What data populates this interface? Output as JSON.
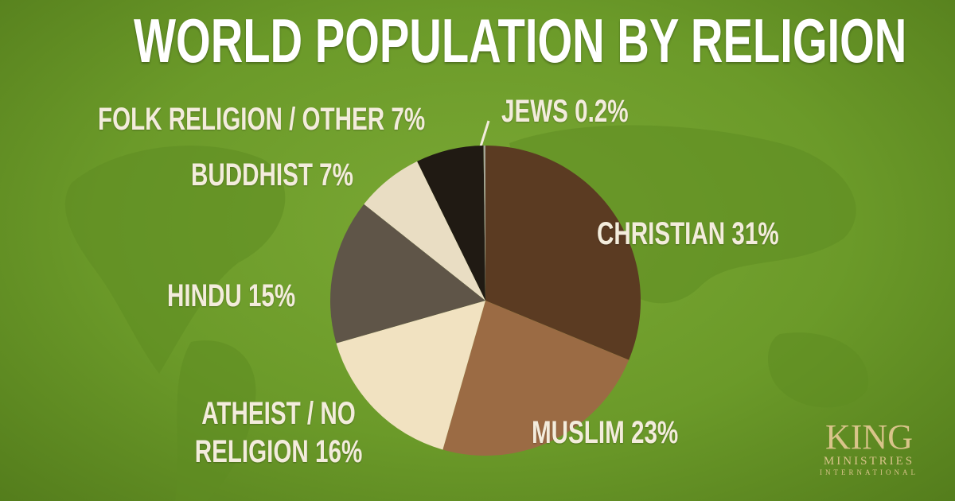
{
  "chart_data": {
    "type": "pie",
    "title": "WORLD POPULATION BY RELIGION",
    "categories": [
      "CHRISTIAN",
      "MUSLIM",
      "ATHEIST / NO RELIGION",
      "HINDU",
      "BUDDHIST",
      "FOLK RELIGION / OTHER",
      "JEWS"
    ],
    "values": [
      31,
      23,
      16,
      15,
      7,
      7,
      0.2
    ],
    "value_labels": [
      "31%",
      "23%",
      "16%",
      "15%",
      "7%",
      "7%",
      "0.2%"
    ],
    "colors": [
      "#5b3b22",
      "#9b6b44",
      "#f1e2c1",
      "#5f5548",
      "#e9ddc3",
      "#201a13",
      "#a4a596"
    ]
  },
  "logo": {
    "name": "KING",
    "line1": "MINISTRIES",
    "line2": "INTERNATIONAL"
  }
}
